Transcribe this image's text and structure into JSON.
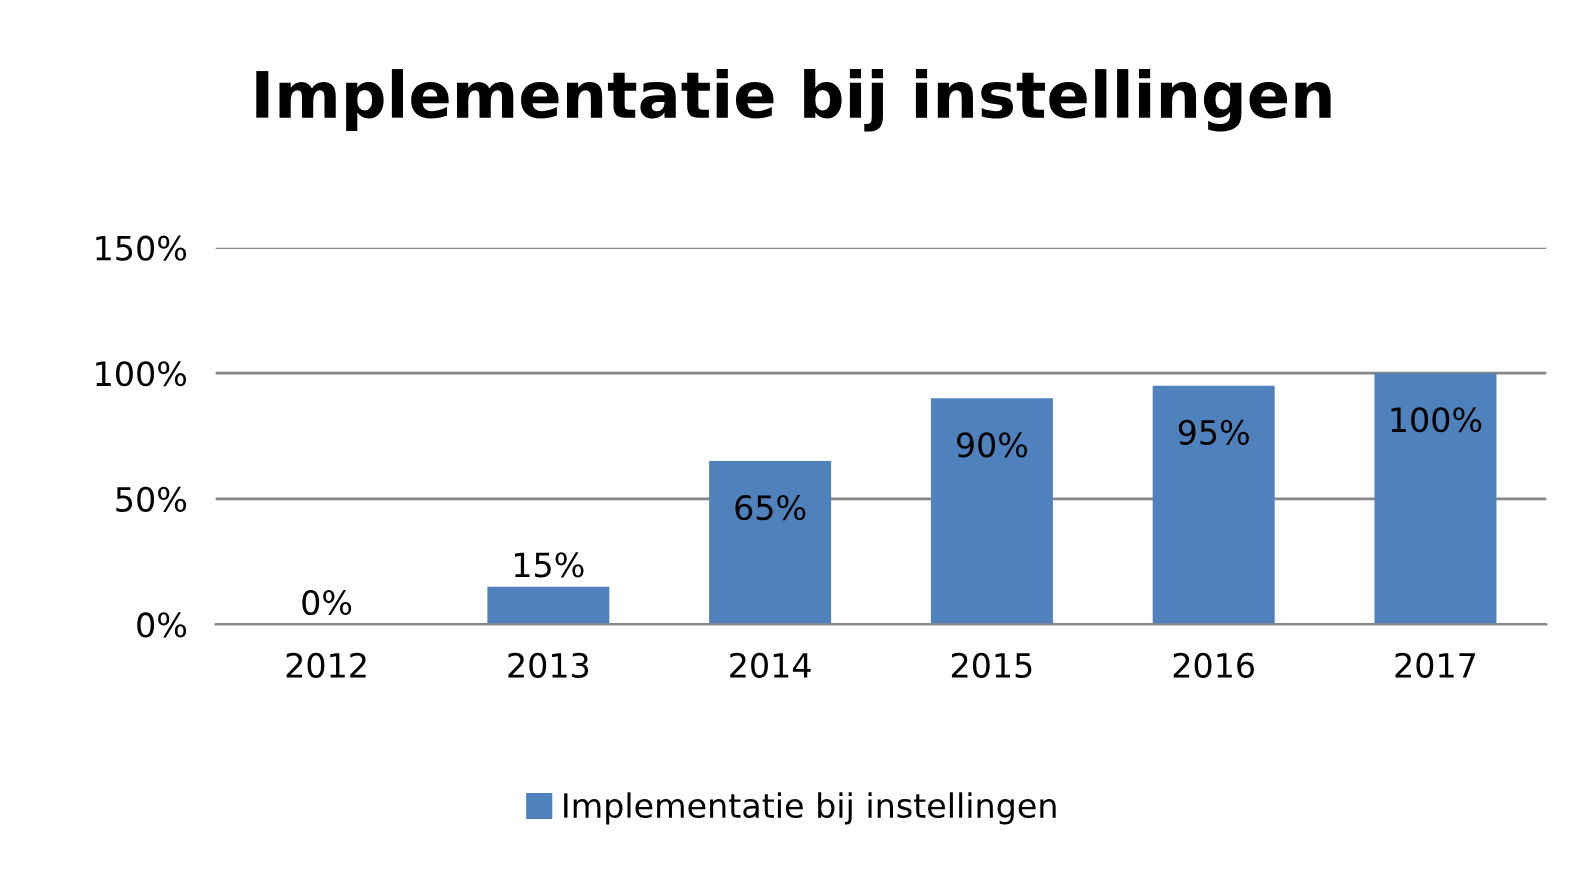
{
  "chart_data": {
    "type": "bar",
    "title": "Implementatie bij instellingen",
    "categories": [
      "2012",
      "2013",
      "2014",
      "2015",
      "2016",
      "2017"
    ],
    "series": [
      {
        "name": "Implementatie bij instellingen",
        "color": "#4f81bd",
        "values": [
          0,
          15,
          65,
          90,
          95,
          100
        ],
        "value_labels": [
          "0%",
          "15%",
          "65%",
          "90%",
          "95%",
          "100%"
        ]
      }
    ],
    "ylim": [
      0,
      150
    ],
    "yticks": [
      {
        "value": 0,
        "label": "0%"
      },
      {
        "value": 50,
        "label": "50%"
      },
      {
        "value": 100,
        "label": "100%"
      },
      {
        "value": 150,
        "label": "150%"
      }
    ],
    "grid": "y",
    "legend": "bottom"
  }
}
